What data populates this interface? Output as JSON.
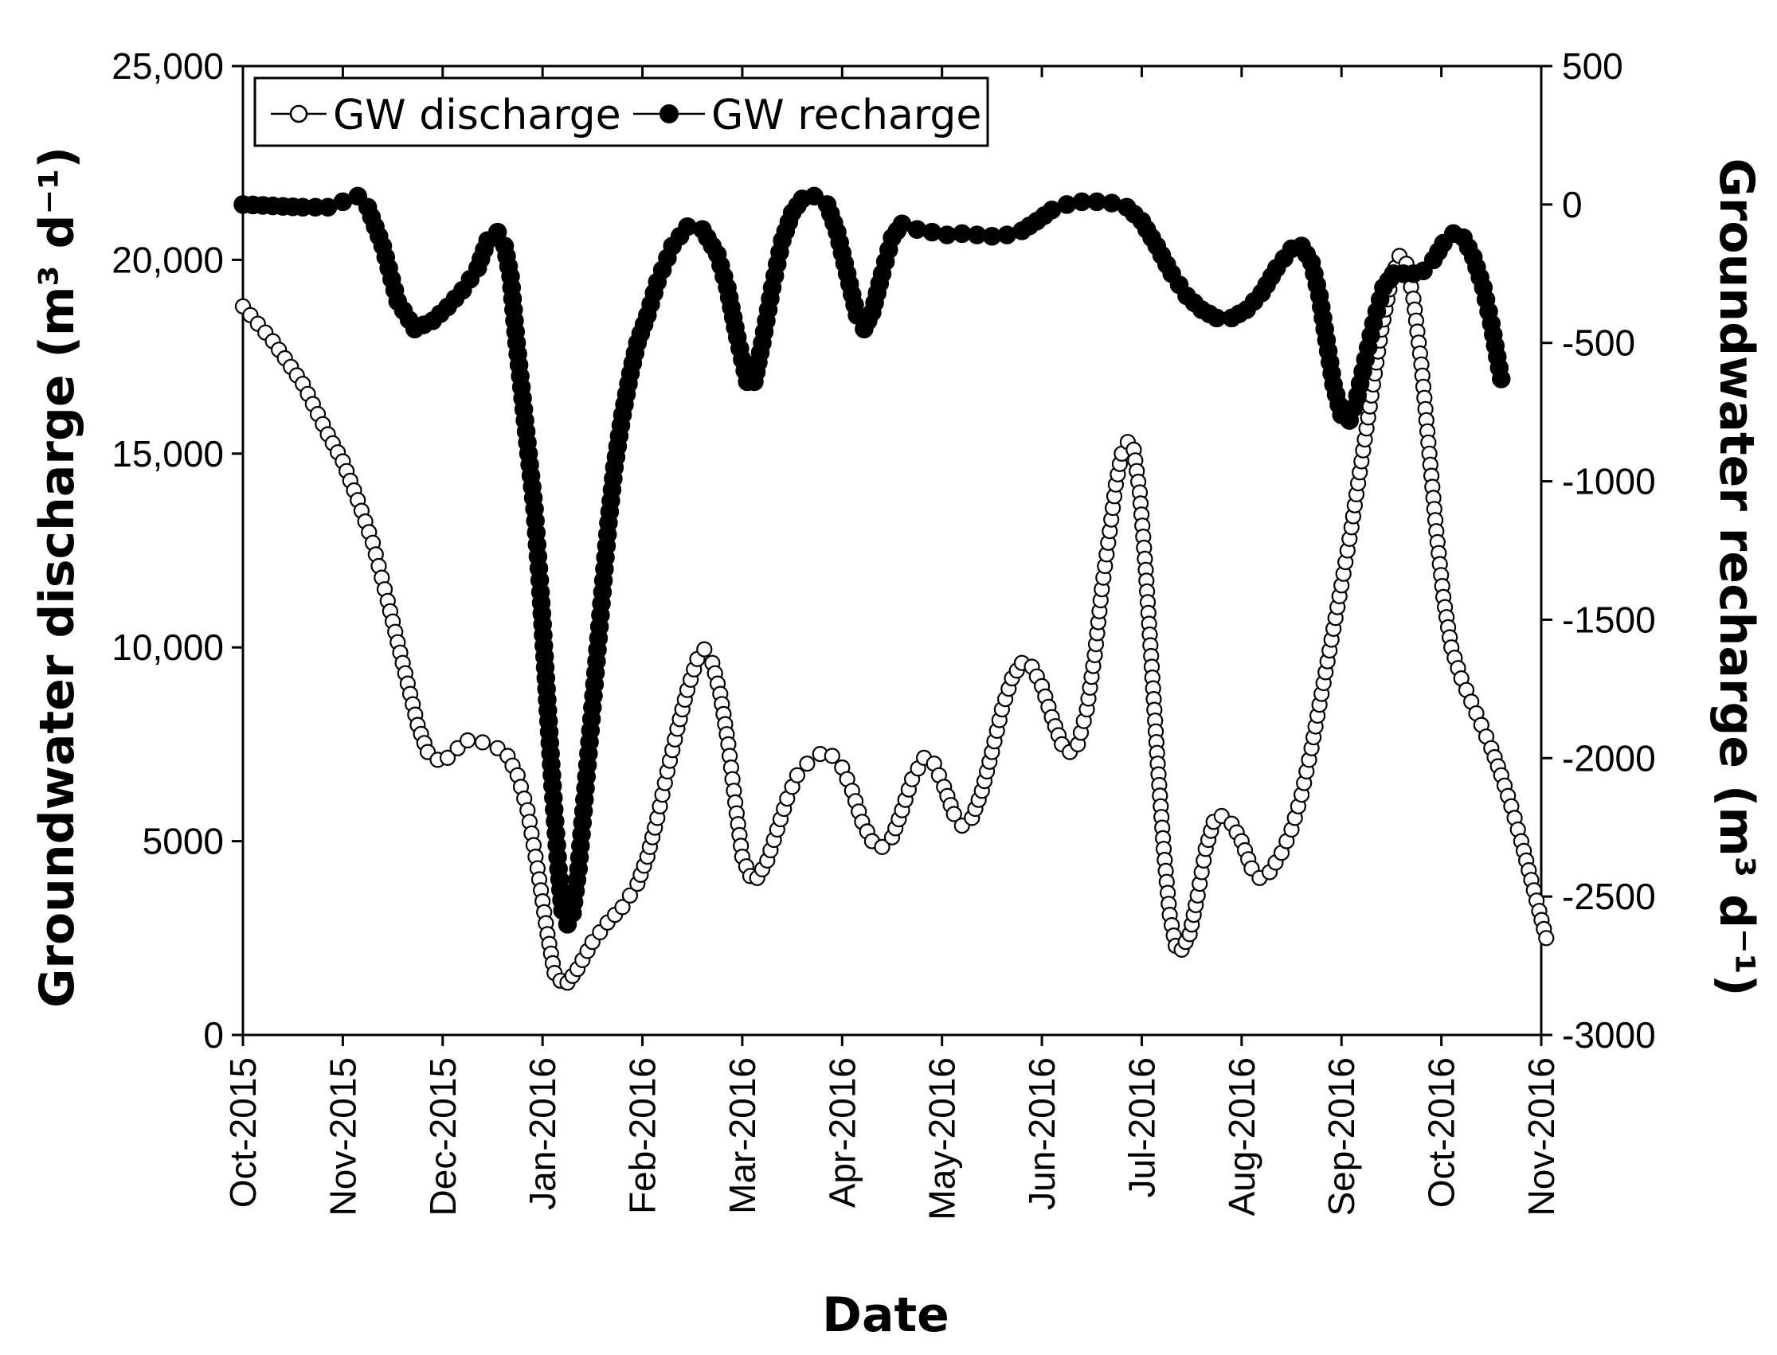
{
  "chart_data": {
    "type": "line",
    "xlabel": "Date",
    "ylabel_left": "Groundwater discharge (m³ d⁻¹)",
    "ylabel_right": "Groundwater recharge (m³ d⁻¹)",
    "x_categories": [
      "Oct-2015",
      "Nov-2015",
      "Dec-2015",
      "Jan-2016",
      "Feb-2016",
      "Mar-2016",
      "Apr-2016",
      "May-2016",
      "Jun-2016",
      "Jul-2016",
      "Aug-2016",
      "Sep-2016",
      "Oct-2016",
      "Nov-2016"
    ],
    "ylim_left": [
      0,
      25000
    ],
    "ylim_right": [
      -3000,
      500
    ],
    "yticks_left": [
      0,
      5000,
      10000,
      15000,
      20000,
      25000
    ],
    "ytick_labels_left": [
      "0",
      "5000",
      "10,000",
      "15,000",
      "20,000",
      "25,000"
    ],
    "yticks_right": [
      -3000,
      -2500,
      -2000,
      -1500,
      -1000,
      -500,
      0,
      500
    ],
    "ytick_labels_right": [
      "-3000",
      "-2500",
      "-2000",
      "-1500",
      "-1000",
      "-500",
      "0",
      "500"
    ],
    "legend": {
      "position": "top-left",
      "entries": [
        "GW discharge",
        "GW recharge"
      ]
    },
    "series": [
      {
        "name": "GW discharge",
        "axis": "left",
        "marker": "open-circle",
        "points": [
          [
            0,
            18800
          ],
          [
            0.3,
            17900
          ],
          [
            0.6,
            16800
          ],
          [
            0.85,
            15500
          ],
          [
            1.0,
            14800
          ],
          [
            1.15,
            13800
          ],
          [
            1.3,
            12700
          ],
          [
            1.45,
            11200
          ],
          [
            1.6,
            9600
          ],
          [
            1.75,
            8000
          ],
          [
            1.85,
            7300
          ],
          [
            1.95,
            7100
          ],
          [
            2.05,
            7150
          ],
          [
            2.15,
            7400
          ],
          [
            2.25,
            7600
          ],
          [
            2.4,
            7550
          ],
          [
            2.55,
            7400
          ],
          [
            2.65,
            7200
          ],
          [
            2.75,
            6700
          ],
          [
            2.85,
            5800
          ],
          [
            2.95,
            4300
          ],
          [
            3.05,
            2600
          ],
          [
            3.12,
            1600
          ],
          [
            3.18,
            1400
          ],
          [
            3.25,
            1350
          ],
          [
            3.35,
            1700
          ],
          [
            3.5,
            2400
          ],
          [
            3.65,
            2900
          ],
          [
            3.8,
            3300
          ],
          [
            3.95,
            3900
          ],
          [
            4.05,
            4600
          ],
          [
            4.15,
            5600
          ],
          [
            4.25,
            6800
          ],
          [
            4.35,
            7900
          ],
          [
            4.45,
            8900
          ],
          [
            4.55,
            9700
          ],
          [
            4.62,
            9950
          ],
          [
            4.7,
            9600
          ],
          [
            4.78,
            8800
          ],
          [
            4.86,
            7500
          ],
          [
            4.93,
            6000
          ],
          [
            5.0,
            4600
          ],
          [
            5.08,
            4100
          ],
          [
            5.15,
            4050
          ],
          [
            5.25,
            4500
          ],
          [
            5.35,
            5300
          ],
          [
            5.45,
            6100
          ],
          [
            5.55,
            6700
          ],
          [
            5.65,
            7000
          ],
          [
            5.78,
            7250
          ],
          [
            5.9,
            7200
          ],
          [
            6.0,
            6900
          ],
          [
            6.1,
            6300
          ],
          [
            6.2,
            5500
          ],
          [
            6.3,
            5000
          ],
          [
            6.4,
            4850
          ],
          [
            6.5,
            5100
          ],
          [
            6.6,
            5800
          ],
          [
            6.7,
            6600
          ],
          [
            6.82,
            7150
          ],
          [
            6.92,
            7000
          ],
          [
            7.02,
            6400
          ],
          [
            7.12,
            5700
          ],
          [
            7.2,
            5400
          ],
          [
            7.3,
            5600
          ],
          [
            7.4,
            6300
          ],
          [
            7.5,
            7300
          ],
          [
            7.6,
            8400
          ],
          [
            7.7,
            9200
          ],
          [
            7.8,
            9600
          ],
          [
            7.9,
            9500
          ],
          [
            8.0,
            9000
          ],
          [
            8.1,
            8200
          ],
          [
            8.2,
            7500
          ],
          [
            8.28,
            7300
          ],
          [
            8.36,
            7500
          ],
          [
            8.45,
            8400
          ],
          [
            8.53,
            9800
          ],
          [
            8.6,
            11500
          ],
          [
            8.68,
            13000
          ],
          [
            8.74,
            14200
          ],
          [
            8.8,
            15000
          ],
          [
            8.86,
            15300
          ],
          [
            8.92,
            15100
          ],
          [
            8.98,
            14000
          ],
          [
            9.04,
            12000
          ],
          [
            9.1,
            9500
          ],
          [
            9.16,
            7000
          ],
          [
            9.22,
            4800
          ],
          [
            9.28,
            3100
          ],
          [
            9.34,
            2300
          ],
          [
            9.4,
            2200
          ],
          [
            9.48,
            2600
          ],
          [
            9.56,
            3600
          ],
          [
            9.64,
            4800
          ],
          [
            9.72,
            5500
          ],
          [
            9.8,
            5650
          ],
          [
            9.9,
            5450
          ],
          [
            10.0,
            5000
          ],
          [
            10.1,
            4300
          ],
          [
            10.18,
            4050
          ],
          [
            10.28,
            4200
          ],
          [
            10.4,
            4700
          ],
          [
            10.5,
            5300
          ],
          [
            10.6,
            6200
          ],
          [
            10.7,
            7400
          ],
          [
            10.8,
            8800
          ],
          [
            10.9,
            10200
          ],
          [
            11.0,
            11600
          ],
          [
            11.1,
            13100
          ],
          [
            11.2,
            14800
          ],
          [
            11.3,
            16500
          ],
          [
            11.4,
            18200
          ],
          [
            11.5,
            19500
          ],
          [
            11.58,
            20100
          ],
          [
            11.65,
            19900
          ],
          [
            11.72,
            19000
          ],
          [
            11.8,
            17300
          ],
          [
            11.88,
            15000
          ],
          [
            11.95,
            13000
          ],
          [
            12.02,
            11300
          ],
          [
            12.1,
            10000
          ],
          [
            12.2,
            9200
          ],
          [
            12.3,
            8600
          ],
          [
            12.4,
            8000
          ],
          [
            12.5,
            7400
          ],
          [
            12.6,
            6700
          ],
          [
            12.7,
            5900
          ],
          [
            12.8,
            5000
          ],
          [
            12.9,
            4000
          ],
          [
            12.98,
            3200
          ],
          [
            13.05,
            2500
          ]
        ]
      },
      {
        "name": "GW recharge",
        "axis": "right",
        "marker": "filled-circle",
        "points": [
          [
            0,
            0
          ],
          [
            0.3,
            -5
          ],
          [
            0.6,
            -10
          ],
          [
            0.85,
            -10
          ],
          [
            1.0,
            10
          ],
          [
            1.15,
            30
          ],
          [
            1.25,
            -10
          ],
          [
            1.4,
            -150
          ],
          [
            1.55,
            -350
          ],
          [
            1.72,
            -450
          ],
          [
            1.9,
            -420
          ],
          [
            2.05,
            -370
          ],
          [
            2.2,
            -310
          ],
          [
            2.35,
            -230
          ],
          [
            2.45,
            -130
          ],
          [
            2.55,
            -100
          ],
          [
            2.62,
            -150
          ],
          [
            2.68,
            -260
          ],
          [
            2.74,
            -500
          ],
          [
            2.8,
            -700
          ],
          [
            2.86,
            -900
          ],
          [
            2.92,
            -1100
          ],
          [
            2.98,
            -1400
          ],
          [
            3.04,
            -1750
          ],
          [
            3.1,
            -2100
          ],
          [
            3.16,
            -2400
          ],
          [
            3.2,
            -2550
          ],
          [
            3.25,
            -2600
          ],
          [
            3.3,
            -2560
          ],
          [
            3.36,
            -2400
          ],
          [
            3.42,
            -2150
          ],
          [
            3.48,
            -1900
          ],
          [
            3.54,
            -1650
          ],
          [
            3.6,
            -1400
          ],
          [
            3.66,
            -1150
          ],
          [
            3.72,
            -950
          ],
          [
            3.8,
            -760
          ],
          [
            3.88,
            -610
          ],
          [
            3.95,
            -500
          ],
          [
            4.05,
            -400
          ],
          [
            4.15,
            -280
          ],
          [
            4.3,
            -150
          ],
          [
            4.45,
            -80
          ],
          [
            4.6,
            -90
          ],
          [
            4.75,
            -180
          ],
          [
            4.85,
            -300
          ],
          [
            4.95,
            -480
          ],
          [
            5.05,
            -640
          ],
          [
            5.12,
            -640
          ],
          [
            5.2,
            -500
          ],
          [
            5.3,
            -300
          ],
          [
            5.4,
            -130
          ],
          [
            5.5,
            -30
          ],
          [
            5.6,
            20
          ],
          [
            5.72,
            30
          ],
          [
            5.85,
            0
          ],
          [
            5.95,
            -100
          ],
          [
            6.05,
            -250
          ],
          [
            6.15,
            -400
          ],
          [
            6.22,
            -450
          ],
          [
            6.3,
            -390
          ],
          [
            6.4,
            -250
          ],
          [
            6.5,
            -120
          ],
          [
            6.6,
            -70
          ],
          [
            6.75,
            -90
          ],
          [
            6.9,
            -100
          ],
          [
            7.05,
            -110
          ],
          [
            7.2,
            -105
          ],
          [
            7.35,
            -110
          ],
          [
            7.5,
            -115
          ],
          [
            7.65,
            -110
          ],
          [
            7.8,
            -95
          ],
          [
            7.95,
            -60
          ],
          [
            8.1,
            -20
          ],
          [
            8.25,
            0
          ],
          [
            8.4,
            10
          ],
          [
            8.55,
            10
          ],
          [
            8.7,
            5
          ],
          [
            8.85,
            -10
          ],
          [
            9.0,
            -60
          ],
          [
            9.15,
            -150
          ],
          [
            9.3,
            -250
          ],
          [
            9.45,
            -330
          ],
          [
            9.6,
            -380
          ],
          [
            9.75,
            -410
          ],
          [
            9.9,
            -410
          ],
          [
            10.05,
            -380
          ],
          [
            10.2,
            -320
          ],
          [
            10.35,
            -230
          ],
          [
            10.5,
            -160
          ],
          [
            10.6,
            -150
          ],
          [
            10.7,
            -210
          ],
          [
            10.78,
            -330
          ],
          [
            10.85,
            -490
          ],
          [
            10.92,
            -650
          ],
          [
            11.0,
            -760
          ],
          [
            11.08,
            -780
          ],
          [
            11.16,
            -690
          ],
          [
            11.24,
            -560
          ],
          [
            11.32,
            -430
          ],
          [
            11.42,
            -300
          ],
          [
            11.52,
            -250
          ],
          [
            11.62,
            -250
          ],
          [
            11.72,
            -250
          ],
          [
            11.82,
            -240
          ],
          [
            11.92,
            -200
          ],
          [
            12.02,
            -140
          ],
          [
            12.12,
            -105
          ],
          [
            12.22,
            -120
          ],
          [
            12.32,
            -190
          ],
          [
            12.42,
            -300
          ],
          [
            12.5,
            -430
          ],
          [
            12.56,
            -550
          ],
          [
            12.6,
            -630
          ]
        ]
      }
    ]
  }
}
